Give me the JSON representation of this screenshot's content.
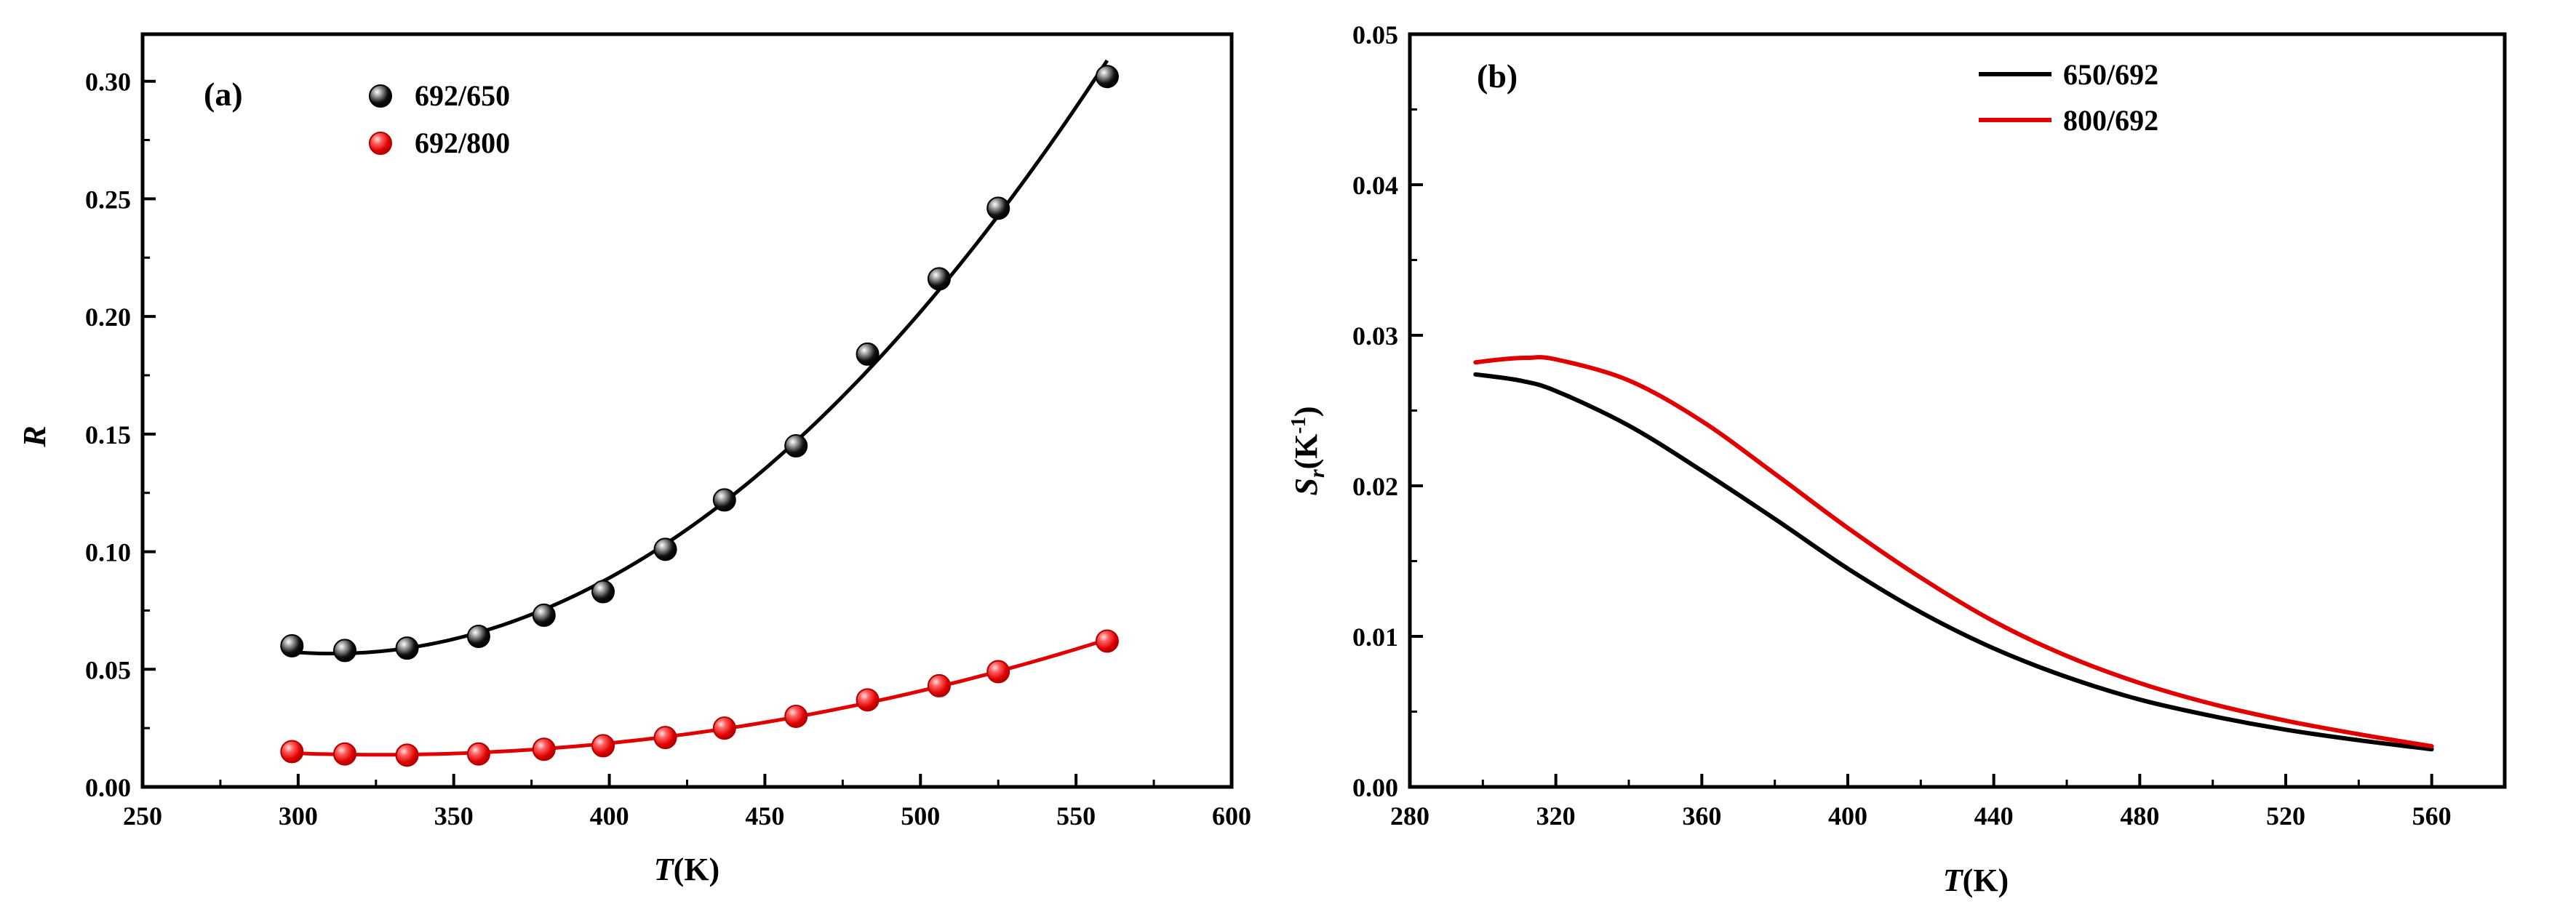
{
  "chart_data": [
    {
      "panel": "(a)",
      "type": "scatter",
      "xlabel_italic": "T",
      "xlabel_rest": "(K)",
      "ylabel": "R",
      "xlim": [
        250,
        600
      ],
      "ylim": [
        0.0,
        0.32
      ],
      "xticks": [
        250,
        300,
        350,
        400,
        450,
        500,
        550,
        600
      ],
      "yticks": [
        0.0,
        0.05,
        0.1,
        0.15,
        0.2,
        0.25,
        0.3
      ],
      "xtick_labels": [
        "250",
        "300",
        "350",
        "400",
        "450",
        "500",
        "550",
        "600"
      ],
      "ytick_labels": [
        "0.00",
        "0.05",
        "0.10",
        "0.15",
        "0.20",
        "0.25",
        "0.30"
      ],
      "legend_position": "top-left",
      "series": [
        {
          "name": "692/650",
          "color": "#000000",
          "x": [
            298,
            315,
            335,
            358,
            379,
            398,
            418,
            437,
            460,
            483,
            506,
            525,
            560
          ],
          "y": [
            0.06,
            0.058,
            0.059,
            0.064,
            0.073,
            0.083,
            0.101,
            0.122,
            0.145,
            0.184,
            0.216,
            0.246,
            0.302
          ],
          "fit": "quadratic"
        },
        {
          "name": "692/800",
          "color": "#e00000",
          "x": [
            298,
            315,
            335,
            358,
            379,
            398,
            418,
            437,
            460,
            483,
            506,
            525,
            560
          ],
          "y": [
            0.015,
            0.014,
            0.0135,
            0.014,
            0.016,
            0.0175,
            0.021,
            0.025,
            0.03,
            0.037,
            0.043,
            0.049,
            0.062
          ],
          "fit": "quadratic"
        }
      ]
    },
    {
      "panel": "(b)",
      "type": "line",
      "xlabel_italic": "T",
      "xlabel_rest": "(K)",
      "ylabel_main": "S",
      "ylabel_sub": "r",
      "ylabel_unit": "(K",
      "ylabel_sup": "-1",
      "ylabel_close": ")",
      "xlim": [
        280,
        580
      ],
      "ylim": [
        0.0,
        0.05
      ],
      "xticks": [
        280,
        320,
        360,
        400,
        440,
        480,
        520,
        560
      ],
      "yticks": [
        0.0,
        0.01,
        0.02,
        0.03,
        0.04,
        0.05
      ],
      "xtick_labels": [
        "280",
        "320",
        "360",
        "400",
        "440",
        "480",
        "520",
        "560"
      ],
      "ytick_labels": [
        "0.00",
        "0.01",
        "0.02",
        "0.03",
        "0.04",
        "0.05"
      ],
      "legend_position": "top-center",
      "series": [
        {
          "name": "650/692",
          "color": "#000000",
          "x": [
            298,
            310,
            320,
            340,
            360,
            380,
            400,
            420,
            440,
            460,
            480,
            500,
            520,
            540,
            560
          ],
          "y": [
            0.0274,
            0.027,
            0.0263,
            0.024,
            0.021,
            0.0178,
            0.0145,
            0.0116,
            0.0092,
            0.0073,
            0.0058,
            0.0047,
            0.0038,
            0.0031,
            0.0025
          ]
        },
        {
          "name": "800/692",
          "color": "#e00000",
          "x": [
            298,
            305,
            312,
            320,
            340,
            360,
            380,
            400,
            420,
            440,
            460,
            480,
            500,
            520,
            540,
            560
          ],
          "y": [
            0.0282,
            0.0284,
            0.0285,
            0.0284,
            0.027,
            0.0243,
            0.0208,
            0.0172,
            0.0139,
            0.011,
            0.0087,
            0.0069,
            0.0055,
            0.0044,
            0.0035,
            0.0027
          ]
        }
      ]
    }
  ]
}
